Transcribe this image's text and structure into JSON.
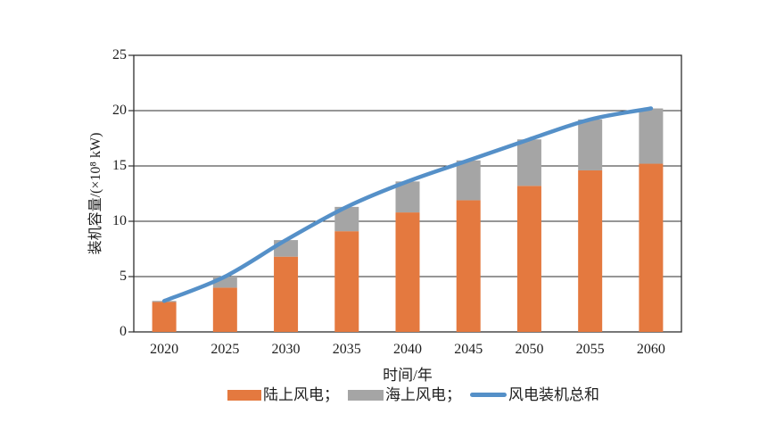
{
  "chart_data": {
    "type": "bar",
    "stacked": true,
    "title": "",
    "xlabel": "时间/年",
    "ylabel": "装机容量/(×10⁸ kW)",
    "categories": [
      "2020",
      "2025",
      "2030",
      "2035",
      "2040",
      "2045",
      "2050",
      "2055",
      "2060"
    ],
    "series": [
      {
        "name": "陆上风电",
        "type": "bar",
        "color": "#E4793F",
        "values": [
          2.7,
          4.0,
          6.8,
          9.1,
          10.8,
          11.9,
          13.2,
          14.6,
          15.2
        ]
      },
      {
        "name": "海上风电",
        "type": "bar",
        "color": "#A5A5A5",
        "values": [
          0.1,
          1.0,
          1.5,
          2.2,
          2.8,
          3.6,
          4.2,
          4.6,
          5.0
        ]
      },
      {
        "name": "风电装机总和",
        "type": "line",
        "color": "#5590C8",
        "values": [
          2.8,
          5.0,
          8.3,
          11.3,
          13.6,
          15.5,
          17.4,
          19.2,
          20.2
        ]
      }
    ],
    "ylim": [
      0,
      25
    ],
    "yticks": [
      0,
      5,
      10,
      15,
      20,
      25
    ],
    "grid": true,
    "legend_position": "bottom",
    "legend_labels": [
      "陆上风电；",
      "海上风电；",
      "风电装机总和"
    ],
    "axis_color": "#2e2e2e",
    "background": "#ffffff"
  }
}
